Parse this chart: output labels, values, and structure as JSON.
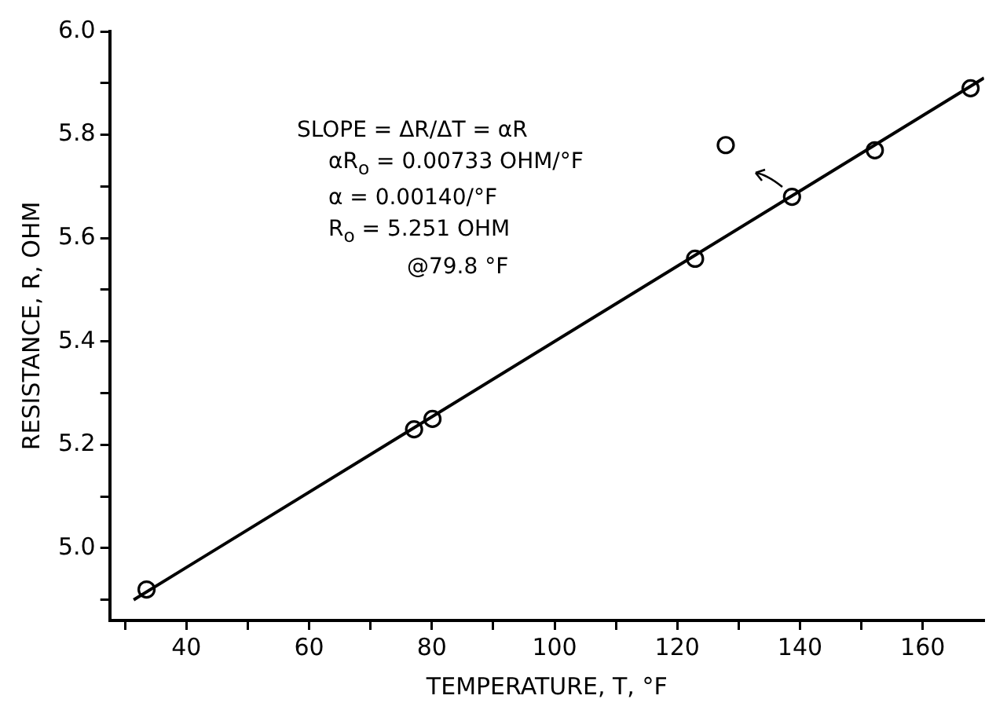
{
  "chart_data": {
    "type": "scatter",
    "xlabel": "TEMPERATURE, T, °F",
    "ylabel": "RESISTANCE, R, OHM",
    "annotations": [
      "SLOPE = ΔR/ΔT = αR",
      "αR$_{o}$ = 0.00733 OHM/°F",
      "α = 0.00140/°F",
      "R$_{o}$ = 5.251 OHM",
      "@79.8 °F"
    ],
    "series": [
      {
        "type": "scatter",
        "color": "#000000",
        "marker": "circle",
        "x": [
          33.5,
          77.1,
          80.1,
          122.9,
          127.9,
          138.7,
          152.2,
          167.8
        ],
        "values": [
          4.92,
          5.23,
          5.25,
          5.56,
          5.78,
          5.68,
          5.77,
          5.89
        ]
      },
      {
        "type": "line",
        "color": "#000000",
        "marker": "none",
        "line_style": "solid",
        "x": [
          31.4,
          170
        ],
        "values": [
          4.9,
          5.91
        ]
      }
    ],
    "xlim": [
      27.5,
      170
    ],
    "ylim": [
      4.86,
      6.0
    ],
    "xticks": [
      {
        "value": 30,
        "label": null
      },
      40,
      {
        "value": 50,
        "label": null
      },
      60,
      {
        "value": 70,
        "label": null
      },
      80,
      {
        "value": 90,
        "label": null
      },
      100,
      {
        "value": 110,
        "label": null
      },
      120,
      {
        "value": 130,
        "label": null
      },
      140,
      {
        "value": 150,
        "label": null
      },
      160
    ],
    "yticks": [
      {
        "value": 4.9,
        "label": null
      },
      {
        "value": 5.0,
        "label": "5.0"
      },
      {
        "value": 5.1,
        "label": null
      },
      5.2,
      {
        "value": 5.3,
        "label": null
      },
      5.4,
      {
        "value": 5.5,
        "label": null
      },
      5.6,
      {
        "value": 5.7,
        "label": null
      },
      5.8,
      {
        "value": 5.9,
        "label": null
      },
      {
        "value": 6.0,
        "label": "6.0"
      }
    ],
    "grid": false,
    "legend": false
  }
}
